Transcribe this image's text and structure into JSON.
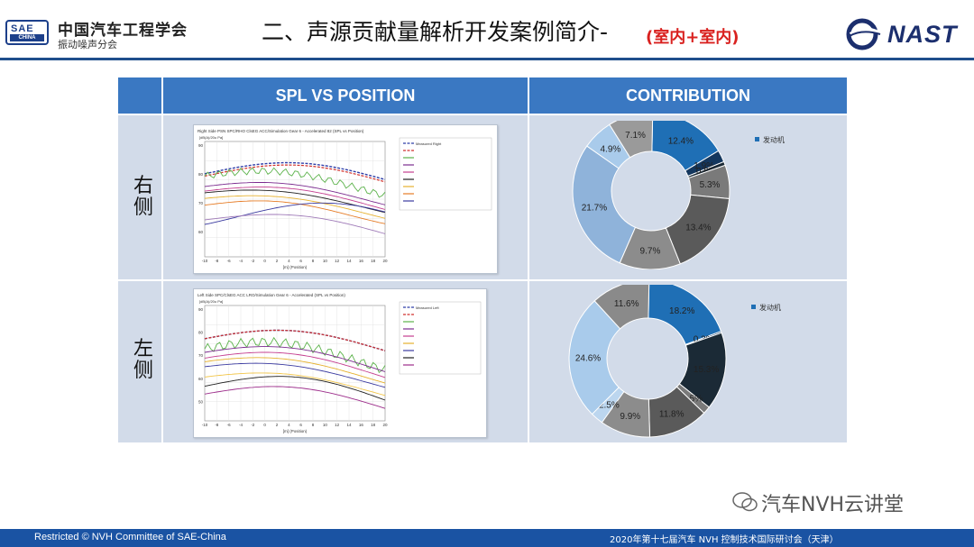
{
  "header": {
    "logo_text": "SAE",
    "logo_sub": "CHINA",
    "org_name": "中国汽车工程学会",
    "org_sub": "振动噪声分会",
    "title": "二、声源贡献量解析开发案例简介-",
    "title_suffix": "(室内+室内)",
    "nast_logo": "NAST"
  },
  "table": {
    "col_headers": [
      "SPL VS POSITION",
      "CONTRIBUTION"
    ],
    "rows": [
      {
        "label": "右侧",
        "plot": {
          "title": "Right Side PSN SPC/RHO ClsEG ACC/Simulation Gear 6 - Accelerated 82 (SPL vs Position)",
          "y_unit": "[dB(A)/20u Pa]",
          "legend_first": "Measured Right",
          "x_label": "[m] (Position)",
          "y_ticks_left": [
            "90",
            "80",
            "70",
            "60"
          ],
          "x_ticks": [
            "-10",
            "-8",
            "-6",
            "-4",
            "-2",
            "0",
            "2",
            "4",
            "6",
            "8",
            "10",
            "12",
            "14",
            "16",
            "18",
            "20"
          ]
        },
        "donut": {
          "legend": "发动机",
          "labels": [
            "12.4%",
            "1.9%",
            "0.6%",
            "5.3%",
            "13.4%",
            "9.7%",
            "21.7%",
            "4.9%",
            "7.1%"
          ]
        }
      },
      {
        "label": "左侧",
        "plot": {
          "title": "Left Side SPC/ClsEG ACC LRO/Simulation Gear 6 - Accelerated (SPL vs Position)",
          "y_unit": "[dB(A)/20u Pa]",
          "legend_first": "Measured Left",
          "x_label": "[m] (Position)",
          "y_ticks_left": [
            "90",
            "80",
            "70",
            "60",
            "50"
          ],
          "x_ticks": [
            "-10",
            "-8",
            "-6",
            "-4",
            "-2",
            "0",
            "2",
            "4",
            "6",
            "8",
            "10",
            "12",
            "14",
            "16",
            "18",
            "20"
          ]
        },
        "donut": {
          "legend": "发动机",
          "labels": [
            "18.2%",
            "0.3%",
            "15.3%",
            "1.5%",
            "11.8%",
            "9.9%",
            "2.5%",
            "24.6%",
            "11.6%"
          ]
        }
      }
    ]
  },
  "chart_data": [
    {
      "type": "pie",
      "title": "",
      "categories": [
        "发动机",
        "",
        "",
        "",
        "",
        "",
        "",
        "",
        ""
      ],
      "values": [
        12.4,
        1.9,
        0.6,
        5.3,
        13.4,
        9.7,
        21.7,
        4.9,
        7.1
      ],
      "colors": [
        "#1f6fb5",
        "#14375e",
        "#1b2a36",
        "#7a7a7a",
        "#5a5a5a",
        "#8c8c8c",
        "#8fb3da",
        "#a9cbeb",
        "#9a9a9a"
      ]
    },
    {
      "type": "pie",
      "title": "",
      "categories": [
        "发动机",
        "",
        "",
        "",
        "",
        "",
        "",
        "",
        ""
      ],
      "values": [
        18.2,
        0.3,
        15.3,
        1.5,
        11.8,
        9.9,
        2.5,
        24.6,
        11.6
      ],
      "colors": [
        "#1f6fb5",
        "#14375e",
        "#1b2a36",
        "#7a7a7a",
        "#5a5a5a",
        "#8c8c8c",
        "#bcd6ef",
        "#a9cbeb",
        "#8a8a8a"
      ]
    }
  ],
  "footer": {
    "left": "Restricted © NVH Committee of SAE-China",
    "right": "2020年第十七届汽车 NVH 控制技术国际研讨会（天津）"
  },
  "watermark": "汽车NVH云讲堂"
}
